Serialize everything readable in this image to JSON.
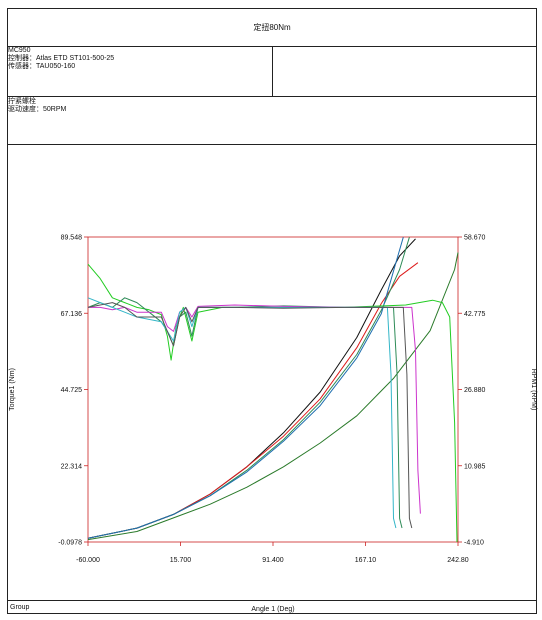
{
  "header": {
    "title": "定扭80Nm",
    "model": "MC950",
    "controller": "控制器：Atlas ETD ST101-500-25",
    "sensor": "传感器：TAU050-160",
    "operation": "拧紧螺栓",
    "drive_speed": "驱动速度：50RPM"
  },
  "footer": {
    "group_label": "Group"
  },
  "chart_data": {
    "type": "line",
    "xlabel": "Angle 1 (Deg)",
    "ylabel": "Torque1 (Nm)",
    "y2label": "RPM1 (RPM)",
    "xlim": [
      -60.0,
      242.8
    ],
    "ylim": [
      -0.0978,
      89.548
    ],
    "y2lim": [
      -4.91,
      58.67
    ],
    "xticks": [
      "-60.000",
      "15.700",
      "91.400",
      "167.10",
      "242.80"
    ],
    "yticks": [
      "-0.0978",
      "22.314",
      "44.725",
      "67.136",
      "89.548"
    ],
    "y2ticks": [
      "-4.910",
      "10.985",
      "26.880",
      "42.775",
      "58.670"
    ],
    "series": [
      {
        "axis": "left",
        "color": "#111111",
        "points": [
          [
            -60,
            1
          ],
          [
            -20,
            4
          ],
          [
            10,
            8
          ],
          [
            40,
            14
          ],
          [
            70,
            22
          ],
          [
            100,
            32
          ],
          [
            130,
            44
          ],
          [
            160,
            60
          ],
          [
            180,
            74
          ],
          [
            195,
            84
          ],
          [
            208,
            89
          ]
        ]
      },
      {
        "axis": "left",
        "color": "#dd1a1a",
        "points": [
          [
            -60,
            1
          ],
          [
            -20,
            4
          ],
          [
            10,
            8
          ],
          [
            40,
            14
          ],
          [
            70,
            22
          ],
          [
            100,
            31
          ],
          [
            130,
            42
          ],
          [
            160,
            57
          ],
          [
            180,
            70
          ],
          [
            195,
            78
          ],
          [
            210,
            82
          ]
        ]
      },
      {
        "axis": "left",
        "color": "#2e8b57",
        "points": [
          [
            -60,
            1
          ],
          [
            -20,
            4
          ],
          [
            10,
            8
          ],
          [
            40,
            13.5
          ],
          [
            70,
            21
          ],
          [
            100,
            30
          ],
          [
            130,
            41
          ],
          [
            160,
            55
          ],
          [
            180,
            68
          ],
          [
            195,
            80
          ],
          [
            203,
            89.5
          ]
        ]
      },
      {
        "axis": "left",
        "color": "#1f6fb0",
        "points": [
          [
            -60,
            1
          ],
          [
            -20,
            4
          ],
          [
            10,
            8
          ],
          [
            40,
            13.5
          ],
          [
            70,
            20.5
          ],
          [
            100,
            29.5
          ],
          [
            130,
            40
          ],
          [
            160,
            54
          ],
          [
            180,
            67
          ],
          [
            192,
            82
          ],
          [
            198,
            89.5
          ]
        ]
      },
      {
        "axis": "left",
        "color": "#2a7a2a",
        "points": [
          [
            -60,
            0.6
          ],
          [
            -20,
            3
          ],
          [
            10,
            7
          ],
          [
            40,
            11
          ],
          [
            70,
            16
          ],
          [
            100,
            22
          ],
          [
            130,
            29
          ],
          [
            160,
            37
          ],
          [
            190,
            48
          ],
          [
            220,
            62
          ],
          [
            240,
            80
          ],
          [
            242.8,
            85
          ]
        ]
      },
      {
        "axis": "right",
        "color": "#22cc22",
        "points": [
          [
            -60,
            53
          ],
          [
            -50,
            50
          ],
          [
            -40,
            46
          ],
          [
            -30,
            45
          ],
          [
            -20,
            44
          ],
          [
            -10,
            43.5
          ],
          [
            0,
            42.5
          ],
          [
            5,
            38
          ],
          [
            8,
            33
          ],
          [
            12,
            40
          ],
          [
            18,
            44
          ],
          [
            25,
            37
          ],
          [
            30,
            43
          ],
          [
            50,
            44
          ],
          [
            100,
            44
          ],
          [
            150,
            44
          ],
          [
            200,
            44.5
          ],
          [
            222,
            45.5
          ],
          [
            230,
            45
          ],
          [
            236,
            42
          ],
          [
            240,
            20
          ],
          [
            242,
            -4.9
          ]
        ]
      },
      {
        "axis": "right",
        "color": "#2e8b57",
        "points": [
          [
            -60,
            44
          ],
          [
            -50,
            45
          ],
          [
            -40,
            44
          ],
          [
            -30,
            46
          ],
          [
            -20,
            45
          ],
          [
            -10,
            43
          ],
          [
            0,
            41
          ],
          [
            5,
            39
          ],
          [
            10,
            36
          ],
          [
            15,
            42
          ],
          [
            20,
            43
          ],
          [
            25,
            38
          ],
          [
            30,
            44
          ],
          [
            60,
            44
          ],
          [
            100,
            44.3
          ],
          [
            150,
            44
          ],
          [
            190,
            44
          ],
          [
            193,
            30
          ],
          [
            195,
            0
          ],
          [
            197,
            -2
          ]
        ]
      },
      {
        "axis": "right",
        "color": "#cc33cc",
        "points": [
          [
            -60,
            44
          ],
          [
            -50,
            44
          ],
          [
            -40,
            43.5
          ],
          [
            -30,
            44
          ],
          [
            -20,
            43
          ],
          [
            0,
            43
          ],
          [
            5,
            40
          ],
          [
            10,
            39
          ],
          [
            15,
            43
          ],
          [
            20,
            44
          ],
          [
            25,
            42
          ],
          [
            30,
            44.2
          ],
          [
            60,
            44.5
          ],
          [
            100,
            44.2
          ],
          [
            150,
            44
          ],
          [
            205,
            44
          ],
          [
            208,
            35
          ],
          [
            210,
            10
          ],
          [
            212,
            1
          ]
        ]
      },
      {
        "axis": "right",
        "color": "#33b6c8",
        "points": [
          [
            -60,
            46
          ],
          [
            -50,
            45
          ],
          [
            -40,
            44
          ],
          [
            -30,
            43
          ],
          [
            -20,
            42
          ],
          [
            0,
            41
          ],
          [
            5,
            39
          ],
          [
            10,
            37
          ],
          [
            15,
            43
          ],
          [
            20,
            44
          ],
          [
            25,
            40
          ],
          [
            30,
            44
          ],
          [
            60,
            44
          ],
          [
            100,
            44
          ],
          [
            150,
            44
          ],
          [
            185,
            44
          ],
          [
            188,
            30
          ],
          [
            190,
            0
          ],
          [
            192,
            -2
          ]
        ]
      },
      {
        "axis": "right",
        "color": "#555555",
        "points": [
          [
            -60,
            44
          ],
          [
            -50,
            44.5
          ],
          [
            -40,
            45
          ],
          [
            -30,
            44
          ],
          [
            -20,
            42
          ],
          [
            0,
            42
          ],
          [
            5,
            39
          ],
          [
            10,
            36
          ],
          [
            15,
            42
          ],
          [
            20,
            44
          ],
          [
            25,
            41
          ],
          [
            30,
            44
          ],
          [
            60,
            44
          ],
          [
            100,
            43.8
          ],
          [
            150,
            44
          ],
          [
            198,
            44
          ],
          [
            201,
            30
          ],
          [
            203,
            0
          ],
          [
            205,
            -2
          ]
        ]
      }
    ]
  }
}
